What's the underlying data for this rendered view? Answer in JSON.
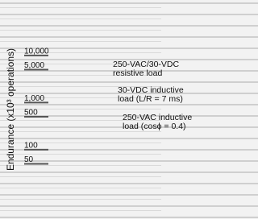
{
  "chart_data": {
    "type": "line",
    "y_label": "Endurance (x10³ operations)",
    "log_y": true,
    "ylim": [
      5,
      150000
    ],
    "yticks": [
      {
        "value": 10000,
        "label": "10,000"
      },
      {
        "value": 5000,
        "label": "5,000"
      },
      {
        "value": 1000,
        "label": "1,000"
      },
      500,
      100,
      50
    ],
    "annotations": [
      {
        "lines": [
          "250-VAC/30-VDC",
          "resistive load"
        ]
      },
      {
        "lines": [
          "30-VDC inductive",
          "load (L/R = 7 ms)"
        ]
      },
      {
        "lines": [
          "250-VAC inductive",
          "load (cosϕ = 0.4)"
        ]
      }
    ],
    "series": []
  }
}
